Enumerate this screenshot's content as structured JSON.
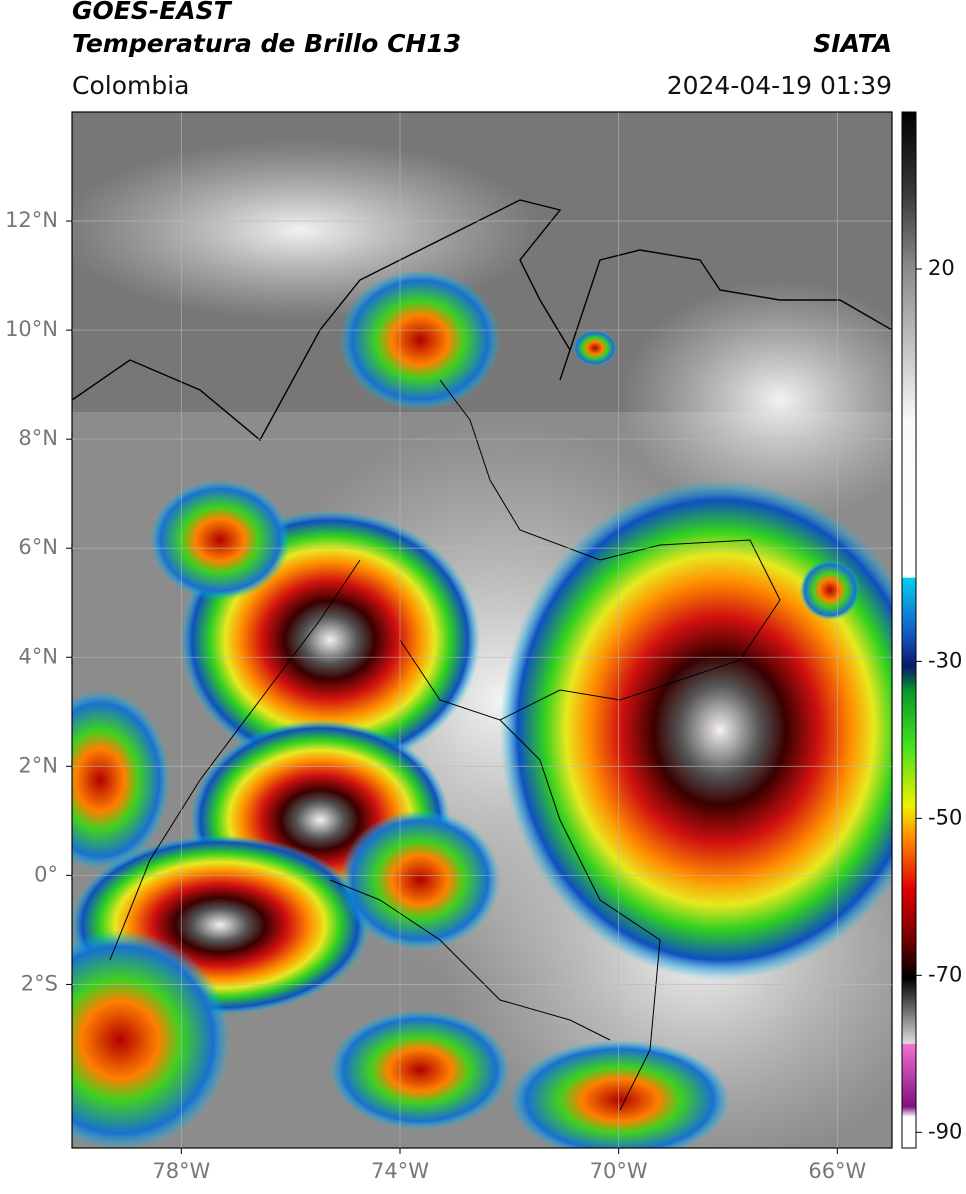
{
  "chart_data": {
    "type": "map",
    "title": "GOES-EAST",
    "subtitle": "Temperatura de Brillo CH13",
    "region": "Colombia",
    "source": "SIATA",
    "timestamp": "2024-04-19 01:39",
    "xlim": [
      -80,
      -65
    ],
    "ylim": [
      -5,
      14
    ],
    "xticks": [
      {
        "value": -78,
        "label": "78°W"
      },
      {
        "value": -74,
        "label": "74°W"
      },
      {
        "value": -70,
        "label": "70°W"
      },
      {
        "value": -66,
        "label": "66°W"
      }
    ],
    "yticks": [
      {
        "value": 12,
        "label": "12°N"
      },
      {
        "value": 10,
        "label": "10°N"
      },
      {
        "value": 8,
        "label": "8°N"
      },
      {
        "value": 6,
        "label": "6°N"
      },
      {
        "value": 4,
        "label": "4°N"
      },
      {
        "value": 2,
        "label": "2°N"
      },
      {
        "value": 0,
        "label": "0°"
      },
      {
        "value": -2,
        "label": "2°S"
      }
    ],
    "grid": true,
    "colorbar": {
      "lim": [
        -92,
        40
      ],
      "ticks": [
        20,
        -30,
        -50,
        -70,
        -90
      ]
    }
  }
}
